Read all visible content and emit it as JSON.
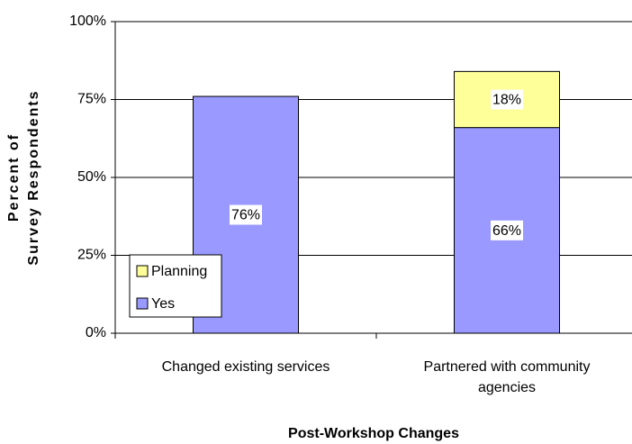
{
  "chart_data": {
    "type": "stacked_bar",
    "xlabel": "Post-Workshop Changes",
    "ylabel": [
      "Percent of",
      "Survey Respondents"
    ],
    "categories": [
      "Changed existing services",
      "Partnered with community agencies"
    ],
    "series": [
      {
        "name": "Yes",
        "color": "#9999ff",
        "values": [
          76,
          66
        ],
        "value_labels": [
          "76%",
          "66%"
        ]
      },
      {
        "name": "Planning",
        "color": "#ffff99",
        "values": [
          null,
          18
        ],
        "value_labels": [
          null,
          "18%"
        ]
      }
    ],
    "ylim": [
      0,
      100
    ],
    "yticks": [
      {
        "value": 0,
        "label": "0%"
      },
      {
        "value": 25,
        "label": "25%"
      },
      {
        "value": 50,
        "label": "50%"
      },
      {
        "value": 75,
        "label": "75%"
      },
      {
        "value": 100,
        "label": "100%"
      }
    ],
    "grid": true
  }
}
